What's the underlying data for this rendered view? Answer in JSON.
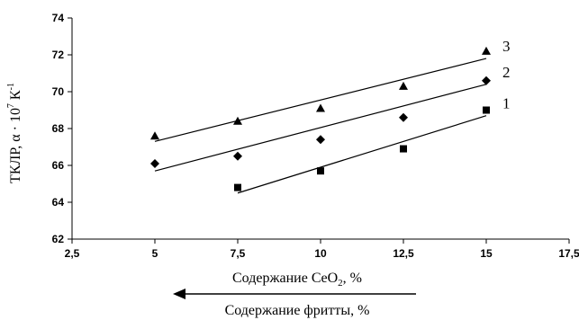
{
  "chart_data": {
    "type": "scatter",
    "title": "",
    "xlabel": "Содержание CeO",
    "xlabel_sub": "2",
    "xlabel_suffix": ", %",
    "ylabel": "ТКЛР, α · 10",
    "ylabel_sup": "7",
    "ylabel_suffix": " К",
    "ylabel_sup2": "-1",
    "arrow_label": "Содержание фритты, %",
    "xlim": [
      2.5,
      17.5
    ],
    "ylim": [
      62,
      74
    ],
    "x_ticks": [
      2.5,
      5,
      7.5,
      10,
      12.5,
      15,
      17.5
    ],
    "x_tick_labels": [
      "2,5",
      "5",
      "7,5",
      "10",
      "12,5",
      "15",
      "17,5"
    ],
    "y_ticks": [
      62,
      64,
      66,
      68,
      70,
      72,
      74
    ],
    "y_tick_labels": [
      "62",
      "64",
      "66",
      "68",
      "70",
      "72",
      "74"
    ],
    "grid": false,
    "series": [
      {
        "name": "1",
        "marker": "square",
        "points": [
          {
            "x": 7.5,
            "y": 64.8
          },
          {
            "x": 10,
            "y": 65.7
          },
          {
            "x": 12.5,
            "y": 66.9
          },
          {
            "x": 15,
            "y": 69.0
          }
        ],
        "trend": {
          "x": [
            7.5,
            15
          ],
          "y": [
            64.5,
            68.7
          ]
        }
      },
      {
        "name": "2",
        "marker": "diamond",
        "points": [
          {
            "x": 5,
            "y": 66.1
          },
          {
            "x": 7.5,
            "y": 66.5
          },
          {
            "x": 10,
            "y": 67.4
          },
          {
            "x": 12.5,
            "y": 68.6
          },
          {
            "x": 15,
            "y": 70.6
          }
        ],
        "trend": {
          "x": [
            5,
            15
          ],
          "y": [
            65.7,
            70.4
          ]
        }
      },
      {
        "name": "3",
        "marker": "triangle",
        "points": [
          {
            "x": 5,
            "y": 67.6
          },
          {
            "x": 7.5,
            "y": 68.4
          },
          {
            "x": 10,
            "y": 69.1
          },
          {
            "x": 12.5,
            "y": 70.3
          },
          {
            "x": 15,
            "y": 72.2
          }
        ],
        "trend": {
          "x": [
            5,
            15
          ],
          "y": [
            67.3,
            71.8
          ]
        }
      }
    ]
  }
}
